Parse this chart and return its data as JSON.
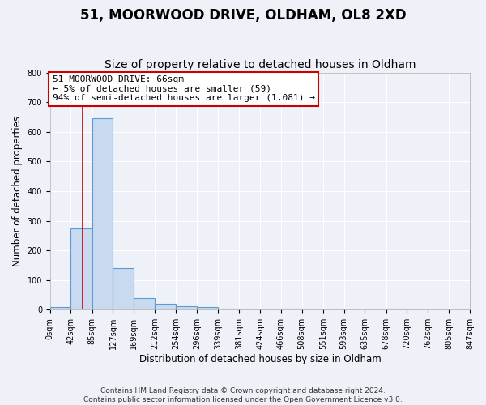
{
  "title": "51, MOORWOOD DRIVE, OLDHAM, OL8 2XD",
  "subtitle": "Size of property relative to detached houses in Oldham",
  "xlabel": "Distribution of detached houses by size in Oldham",
  "ylabel": "Number of detached properties",
  "bin_edges": [
    0,
    42,
    85,
    127,
    169,
    212,
    254,
    296,
    339,
    381,
    424,
    466,
    508,
    551,
    593,
    635,
    678,
    720,
    762,
    805,
    847
  ],
  "bin_counts": [
    8,
    275,
    645,
    140,
    38,
    20,
    12,
    8,
    5,
    0,
    0,
    5,
    0,
    0,
    0,
    0,
    5,
    0,
    0,
    0
  ],
  "bar_facecolor": "#c9d9f0",
  "bar_edgecolor": "#5b9bd5",
  "vline_x": 66,
  "vline_color": "#cc0000",
  "annotation_line1": "51 MOORWOOD DRIVE: 66sqm",
  "annotation_line2": "← 5% of detached houses are smaller (59)",
  "annotation_line3": "94% of semi-detached houses are larger (1,081) →",
  "annotation_box_edgecolor": "#cc0000",
  "annotation_box_facecolor": "#ffffff",
  "ylim": [
    0,
    800
  ],
  "yticks": [
    0,
    100,
    200,
    300,
    400,
    500,
    600,
    700,
    800
  ],
  "tick_labels": [
    "0sqm",
    "42sqm",
    "85sqm",
    "127sqm",
    "169sqm",
    "212sqm",
    "254sqm",
    "296sqm",
    "339sqm",
    "381sqm",
    "424sqm",
    "466sqm",
    "508sqm",
    "551sqm",
    "593sqm",
    "635sqm",
    "678sqm",
    "720sqm",
    "762sqm",
    "805sqm",
    "847sqm"
  ],
  "footer_line1": "Contains HM Land Registry data © Crown copyright and database right 2024.",
  "footer_line2": "Contains public sector information licensed under the Open Government Licence v3.0.",
  "bg_color": "#eef2f8",
  "title_fontsize": 12,
  "subtitle_fontsize": 10,
  "axis_label_fontsize": 8.5,
  "tick_fontsize": 7,
  "footer_fontsize": 6.5,
  "annotation_fontsize": 8
}
